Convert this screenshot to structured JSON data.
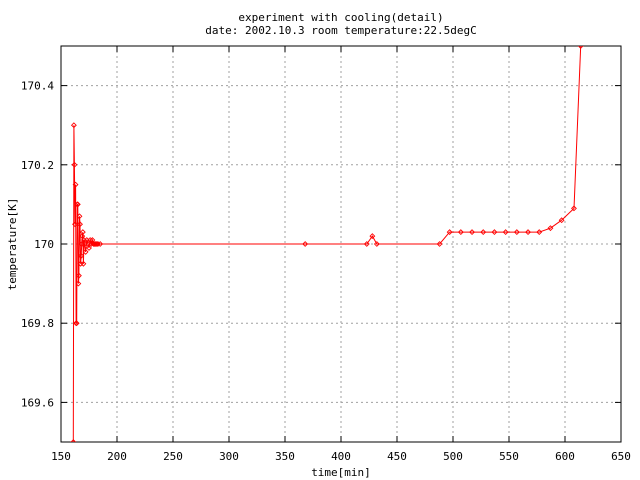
{
  "chart_data": {
    "type": "line",
    "title": "experiment with cooling(detail)",
    "subtitle": "date: 2002.10.3 room temperature:22.5degC",
    "xlabel": "time[min]",
    "ylabel": "temperature[K]",
    "xlim": [
      150,
      650
    ],
    "ylim": [
      169.5,
      170.5
    ],
    "x_ticks": [
      150,
      200,
      250,
      300,
      350,
      400,
      450,
      500,
      550,
      600,
      650
    ],
    "y_ticks": [
      169.6,
      169.8,
      170,
      170.2,
      170.4
    ],
    "y_tick_labels": [
      "169.6",
      "169.8",
      "170",
      "170.2",
      "170.4"
    ],
    "grid": true,
    "line_color": "#ff0000",
    "series": [
      {
        "marker": "diamond",
        "points": [
          [
            161,
            169.5
          ],
          [
            161.5,
            170.3
          ],
          [
            162,
            170.2
          ],
          [
            162.5,
            170.05
          ],
          [
            163,
            170.15
          ],
          [
            163.5,
            169.8
          ],
          [
            164,
            169.8
          ],
          [
            164.5,
            170.1
          ],
          [
            165,
            170.1
          ],
          [
            165.5,
            169.9
          ],
          [
            166,
            169.92
          ],
          [
            166.5,
            170.07
          ],
          [
            167,
            170.05
          ],
          [
            167.5,
            169.95
          ],
          [
            168,
            169.97
          ],
          [
            168.5,
            170.0
          ],
          [
            169,
            170.02
          ],
          [
            169.5,
            170.03
          ],
          [
            170,
            169.95
          ],
          [
            170.5,
            170.01
          ],
          [
            171,
            170.0
          ],
          [
            172,
            169.98
          ],
          [
            173,
            170.01
          ],
          [
            174,
            170.0
          ],
          [
            175,
            169.99
          ],
          [
            176,
            170.01
          ],
          [
            177,
            170.0
          ],
          [
            178,
            170.01
          ],
          [
            179,
            170.0
          ],
          [
            180,
            170.0
          ],
          [
            181,
            170.0
          ],
          [
            182,
            170.0
          ],
          [
            183,
            170.0
          ],
          [
            185,
            170.0
          ],
          [
            368,
            170.0
          ],
          [
            423,
            170.0
          ],
          [
            428,
            170.02
          ],
          [
            432,
            170.0
          ],
          [
            488,
            170.0
          ],
          [
            497,
            170.03
          ],
          [
            507,
            170.03
          ],
          [
            517,
            170.03
          ],
          [
            527,
            170.03
          ],
          [
            537,
            170.03
          ],
          [
            547,
            170.03
          ],
          [
            557,
            170.03
          ],
          [
            567,
            170.03
          ],
          [
            577,
            170.03
          ],
          [
            587,
            170.04
          ],
          [
            597,
            170.06
          ],
          [
            608,
            170.09
          ],
          [
            614,
            170.5
          ]
        ]
      }
    ]
  }
}
